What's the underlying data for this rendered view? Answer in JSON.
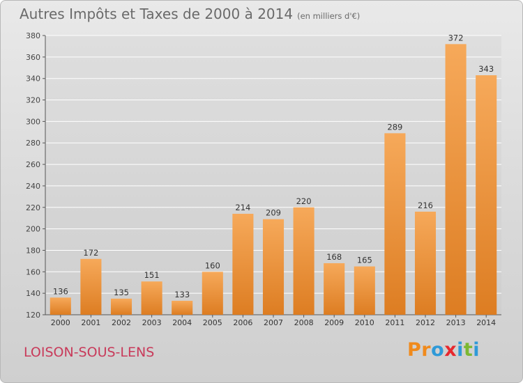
{
  "title": "Autres Impôts et Taxes de 2000 à 2014",
  "subtitle": "(en milliers d'€)",
  "commune": "LOISON-SOUS-LENS",
  "logo": {
    "letters": [
      "P",
      "r",
      "o",
      "x",
      "i",
      "t",
      "i"
    ]
  },
  "colors": {
    "bar_top": "#f6a95a",
    "bar_bottom": "#dd7d22",
    "axis": "#555555",
    "grid": "#ffffff",
    "commune": "#c83a5a"
  },
  "chart_data": {
    "type": "bar",
    "categories": [
      "2000",
      "2001",
      "2002",
      "2003",
      "2004",
      "2005",
      "2006",
      "2007",
      "2008",
      "2009",
      "2010",
      "2011",
      "2012",
      "2013",
      "2014"
    ],
    "values": [
      136,
      172,
      135,
      151,
      133,
      160,
      214,
      209,
      220,
      168,
      165,
      289,
      216,
      372,
      343
    ],
    "ylim": [
      120,
      380
    ],
    "yticks": [
      120,
      140,
      160,
      180,
      200,
      220,
      240,
      260,
      280,
      300,
      320,
      340,
      360,
      380
    ],
    "grid": true,
    "data_labels": true
  }
}
